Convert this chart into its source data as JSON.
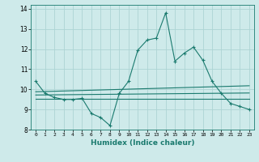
{
  "xlabel": "Humidex (Indice chaleur)",
  "bg_color": "#ceeaea",
  "grid_color": "#add4d4",
  "line_color": "#1a7a6e",
  "xlim": [
    -0.5,
    23.5
  ],
  "ylim": [
    8,
    14.2
  ],
  "yticks": [
    8,
    9,
    10,
    11,
    12,
    13,
    14
  ],
  "xticks": [
    0,
    1,
    2,
    3,
    4,
    5,
    6,
    7,
    8,
    9,
    10,
    11,
    12,
    13,
    14,
    15,
    16,
    17,
    18,
    19,
    20,
    21,
    22,
    23
  ],
  "main_x": [
    0,
    1,
    2,
    3,
    4,
    5,
    6,
    7,
    8,
    9,
    10,
    11,
    12,
    13,
    14,
    15,
    16,
    17,
    18,
    19,
    20,
    21,
    22,
    23
  ],
  "main_y": [
    10.4,
    9.8,
    9.6,
    9.5,
    9.5,
    9.55,
    8.8,
    8.6,
    8.2,
    9.8,
    10.4,
    11.95,
    12.45,
    12.55,
    13.8,
    11.4,
    11.8,
    12.1,
    11.45,
    10.4,
    9.8,
    9.3,
    9.15,
    9.0
  ],
  "line2_x": [
    0,
    23
  ],
  "line2_y": [
    9.72,
    9.82
  ],
  "line3_x": [
    0,
    23
  ],
  "line3_y": [
    9.88,
    10.18
  ],
  "line4_x": [
    0,
    23
  ],
  "line4_y": [
    9.52,
    9.52
  ]
}
